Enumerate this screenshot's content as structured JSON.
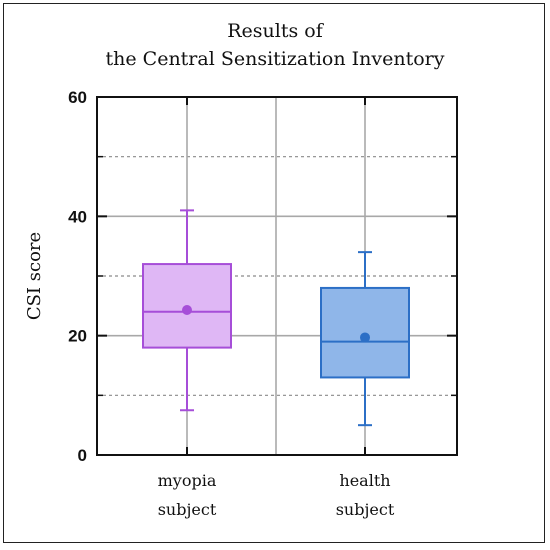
{
  "chart_data": {
    "type": "box",
    "title_line1": "Results of",
    "title_line2": "the Central Sensitization Inventory",
    "ylabel": "CSI score",
    "ylim": [
      0,
      60
    ],
    "y_ticks": [
      0,
      20,
      40,
      60
    ],
    "y_minor_ticks": [
      10,
      30,
      50
    ],
    "grid": true,
    "categories": [
      {
        "line1": "myopia",
        "line2": "subject"
      },
      {
        "line1": "health",
        "line2": "subject"
      }
    ],
    "series": [
      {
        "min": 7.5,
        "q1": 18,
        "median": 24,
        "q3": 32,
        "max": 41,
        "mean": 24.3,
        "color": "#a64ed8",
        "fill": "#dfb7f5"
      },
      {
        "min": 5,
        "q1": 13,
        "median": 19,
        "q3": 28,
        "max": 34,
        "mean": 19.7,
        "color": "#2c6fc6",
        "fill": "#8fb6e9"
      }
    ]
  }
}
